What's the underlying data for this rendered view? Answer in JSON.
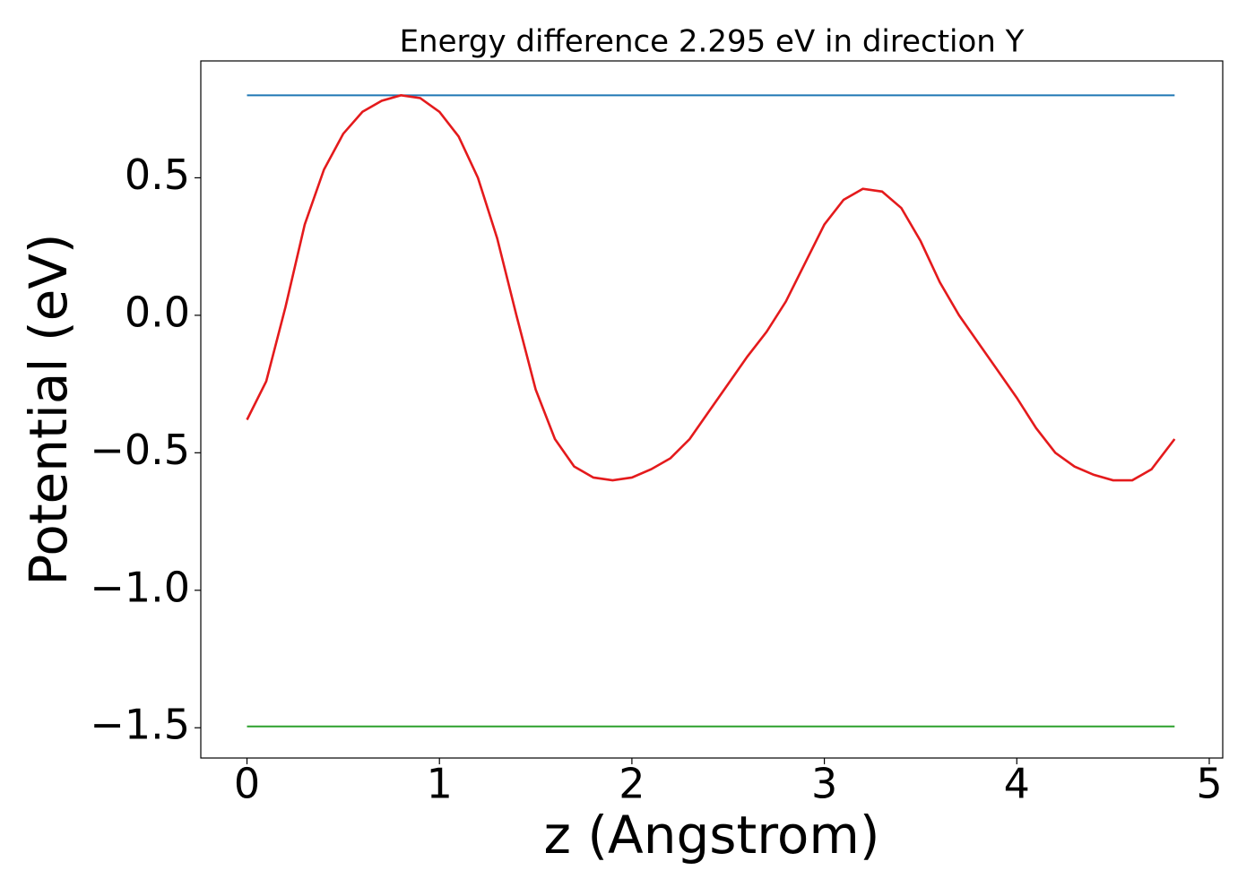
{
  "chart_data": {
    "type": "line",
    "title": "Energy difference 2.295 eV in direction Y",
    "xlabel": "z (Angstrom)",
    "ylabel": "Potential (eV)",
    "xlim": [
      -0.24,
      5.07
    ],
    "ylim": [
      -1.61,
      0.925
    ],
    "xticks": [
      0,
      1,
      2,
      3,
      4,
      5
    ],
    "yticks": [
      {
        "value": -1.5,
        "label": "−1.5"
      },
      {
        "value": -1.0,
        "label": "−1.0"
      },
      {
        "value": -0.5,
        "label": "−0.5"
      },
      {
        "value": 0.0,
        "label": "0.0"
      },
      0.5
    ],
    "series": [
      {
        "color": "#1f77b4",
        "x": [
          0,
          4.82
        ],
        "values": [
          0.8,
          0.8
        ]
      },
      {
        "color": "#2ca02c",
        "x": [
          0,
          4.82
        ],
        "values": [
          -1.495,
          -1.495
        ]
      },
      {
        "color": "#e41a1c",
        "x": [
          0,
          0.1,
          0.2,
          0.3,
          0.4,
          0.5,
          0.6,
          0.7,
          0.8,
          0.9,
          1.0,
          1.1,
          1.2,
          1.3,
          1.4,
          1.5,
          1.6,
          1.7,
          1.8,
          1.9,
          2.0,
          2.1,
          2.2,
          2.3,
          2.4,
          2.5,
          2.6,
          2.7,
          2.8,
          2.9,
          3.0,
          3.1,
          3.2,
          3.3,
          3.4,
          3.5,
          3.6,
          3.7,
          3.8,
          3.9,
          4.0,
          4.1,
          4.2,
          4.3,
          4.4,
          4.5,
          4.6,
          4.7,
          4.82
        ],
        "values": [
          -0.38,
          -0.24,
          0.03,
          0.33,
          0.53,
          0.66,
          0.74,
          0.78,
          0.8,
          0.79,
          0.74,
          0.65,
          0.5,
          0.28,
          0.0,
          -0.27,
          -0.45,
          -0.55,
          -0.59,
          -0.6,
          -0.59,
          -0.56,
          -0.52,
          -0.45,
          -0.35,
          -0.25,
          -0.15,
          -0.06,
          0.05,
          0.19,
          0.33,
          0.42,
          0.46,
          0.45,
          0.39,
          0.27,
          0.12,
          0.0,
          -0.1,
          -0.2,
          -0.3,
          -0.41,
          -0.5,
          -0.55,
          -0.58,
          -0.6,
          -0.6,
          -0.56,
          -0.45
        ]
      }
    ]
  }
}
